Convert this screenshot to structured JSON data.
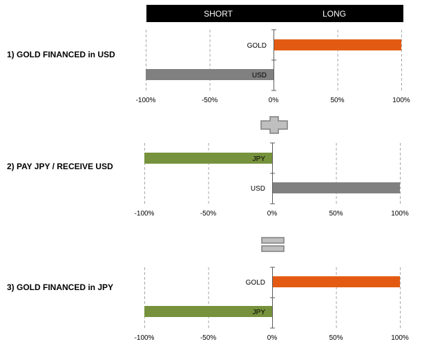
{
  "header": {
    "short_label": "SHORT",
    "long_label": "LONG",
    "bg_color": "#000000"
  },
  "operators": {
    "plus": "plus",
    "equals": "equals"
  },
  "colors": {
    "gold": "#E35B12",
    "usd": "#808080",
    "jpy": "#76923C",
    "grid": "#a6a6a6",
    "axis": "#595959",
    "operator_fill": "#bfbfbf",
    "operator_stroke": "#7f7f7f"
  },
  "chart_data": [
    {
      "type": "bar",
      "orientation": "horizontal",
      "title": "1) GOLD FINANCED in USD",
      "categories": [
        "GOLD",
        "USD"
      ],
      "values": [
        100,
        -100
      ],
      "bar_colors": [
        "#E35B12",
        "#808080"
      ],
      "xlim": [
        -100,
        100
      ],
      "xticks": [
        "-100%",
        "-50%",
        "0%",
        "50%",
        "100%"
      ],
      "tick_values": [
        -100,
        -50,
        0,
        50,
        100
      ],
      "grid": true
    },
    {
      "type": "bar",
      "orientation": "horizontal",
      "title": "2) PAY JPY / RECEIVE USD",
      "categories": [
        "JPY",
        "USD"
      ],
      "values": [
        -100,
        100
      ],
      "bar_colors": [
        "#76923C",
        "#808080"
      ],
      "xlim": [
        -100,
        100
      ],
      "xticks": [
        "-100%",
        "-50%",
        "0%",
        "50%",
        "100%"
      ],
      "tick_values": [
        -100,
        -50,
        0,
        50,
        100
      ],
      "grid": true
    },
    {
      "type": "bar",
      "orientation": "horizontal",
      "title": "3) GOLD FINANCED in JPY",
      "categories": [
        "GOLD",
        "JPY"
      ],
      "values": [
        100,
        -100
      ],
      "bar_colors": [
        "#E35B12",
        "#76923C"
      ],
      "xlim": [
        -100,
        100
      ],
      "xticks": [
        "-100%",
        "-50%",
        "0%",
        "50%",
        "100%"
      ],
      "tick_values": [
        -100,
        -50,
        0,
        50,
        100
      ],
      "grid": true
    }
  ]
}
